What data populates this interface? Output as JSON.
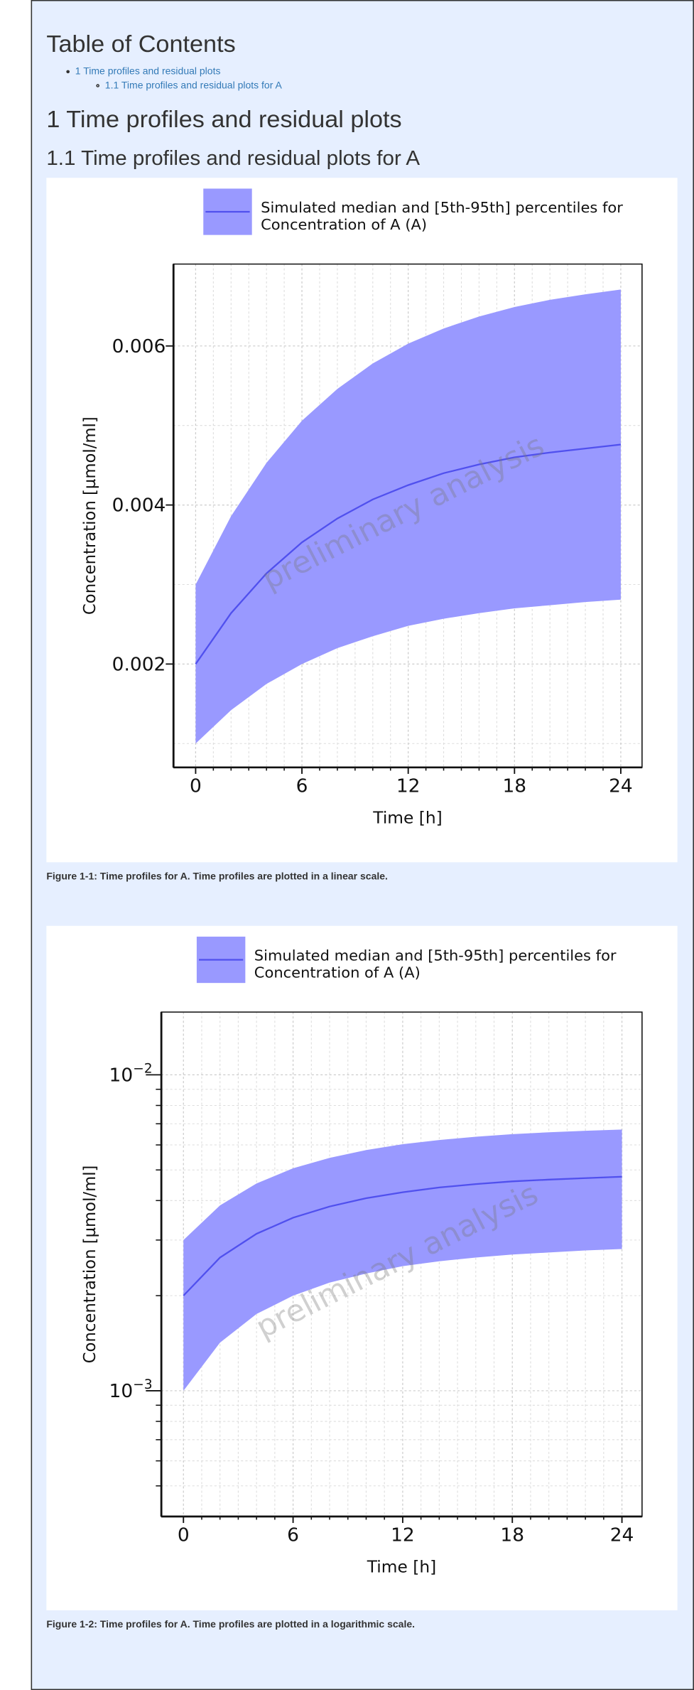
{
  "toc": {
    "title": "Table of Contents",
    "items": [
      "1 Time profiles and residual plots",
      "1.1 Time profiles and residual plots for A"
    ]
  },
  "headings": [
    "1 Time profiles and residual plots",
    "1.1 Time profiles and residual plots for A"
  ],
  "captions": [
    "Figure 1-1: Time profiles for A. Time profiles are plotted in a linear scale.",
    "Figure 1-2: Time profiles for A. Time profiles are plotted in a logarithmic scale."
  ],
  "chart_data": [
    {
      "type": "line",
      "xlabel": "Time [h]",
      "ylabel": "Concentration [µmol/ml]",
      "watermark": "preliminary analysis",
      "x": [
        0,
        2,
        4,
        6,
        8,
        10,
        12,
        14,
        16,
        18,
        20,
        22,
        24
      ],
      "series": [
        {
          "name": "Simulated median and [5th-95th] percentiles for Concentration of A (A)",
          "color": "#5050ee",
          "band_color": "#9999ff",
          "values": [
            0.002,
            0.00264,
            0.00314,
            0.00353,
            0.00383,
            0.00407,
            0.00425,
            0.0044,
            0.00451,
            0.0046,
            0.00466,
            0.00471,
            0.00476
          ],
          "lower": [
            0.001,
            0.00142,
            0.00175,
            0.002,
            0.0022,
            0.00235,
            0.00248,
            0.00257,
            0.00264,
            0.0027,
            0.00274,
            0.00278,
            0.00281
          ],
          "upper": [
            0.003,
            0.00386,
            0.00453,
            0.00506,
            0.00546,
            0.00578,
            0.00603,
            0.00622,
            0.00637,
            0.00649,
            0.00658,
            0.00665,
            0.00671
          ]
        }
      ],
      "xlim": [
        -1.25,
        25.2
      ],
      "xticks": [
        0,
        6,
        12,
        18,
        24
      ],
      "xminorticks": [
        1,
        2,
        3,
        4,
        5,
        7,
        8,
        9,
        10,
        11,
        13,
        14,
        15,
        16,
        17,
        19,
        20,
        21,
        22,
        23
      ],
      "ylim": [
        0.0007,
        0.00703
      ],
      "yticks": [
        0.002,
        0.004,
        0.006
      ],
      "yminorticks": [
        0.001,
        0.003,
        0.005
      ],
      "yscale": "linear",
      "grid": true
    },
    {
      "type": "line",
      "xlabel": "Time [h]",
      "ylabel": "Concentration [µmol/ml]",
      "watermark": "preliminary analysis",
      "x": [
        0,
        2,
        4,
        6,
        8,
        10,
        12,
        14,
        16,
        18,
        20,
        22,
        24
      ],
      "series": [
        {
          "name": "Simulated median and [5th-95th] percentiles for Concentration of A (A)",
          "color": "#5050ee",
          "band_color": "#9999ff",
          "values": [
            0.002,
            0.00264,
            0.00314,
            0.00353,
            0.00383,
            0.00407,
            0.00425,
            0.0044,
            0.00451,
            0.0046,
            0.00466,
            0.00471,
            0.00476
          ],
          "lower": [
            0.001,
            0.00142,
            0.00175,
            0.002,
            0.0022,
            0.00235,
            0.00248,
            0.00257,
            0.00264,
            0.0027,
            0.00274,
            0.00278,
            0.00281
          ],
          "upper": [
            0.003,
            0.00386,
            0.00453,
            0.00506,
            0.00546,
            0.00578,
            0.00603,
            0.00622,
            0.00637,
            0.00649,
            0.00658,
            0.00665,
            0.00671
          ]
        }
      ],
      "xlim": [
        -1.21,
        25.1
      ],
      "xticks": [
        0,
        6,
        12,
        18,
        24
      ],
      "xminorticks": [
        1,
        2,
        3,
        4,
        5,
        7,
        8,
        9,
        10,
        11,
        13,
        14,
        15,
        16,
        17,
        19,
        20,
        21,
        22,
        23
      ],
      "ylim": [
        0.0004,
        0.0158
      ],
      "yticks": [
        {
          "value": 0.001,
          "label": "10−3"
        },
        {
          "value": 0.01,
          "label": "10−2"
        }
      ],
      "yminorticks": [
        0.0005,
        0.0006,
        0.0007,
        0.0008,
        0.0009,
        0.002,
        0.003,
        0.004,
        0.005,
        0.006,
        0.007,
        0.008,
        0.009
      ],
      "yscale": "log",
      "grid": true
    }
  ]
}
